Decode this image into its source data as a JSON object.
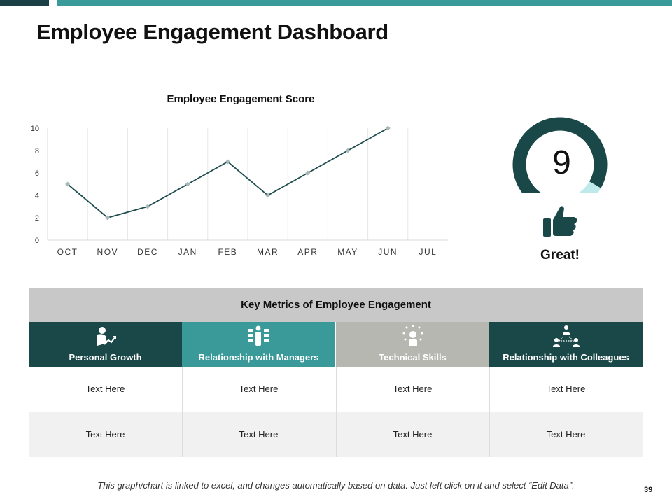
{
  "slide": {
    "title": "Employee Engagement Dashboard",
    "footnote": "This graph/chart is linked to excel, and changes automatically based on data. Just left click on it and select “Edit Data”.",
    "page_number": "39"
  },
  "colors": {
    "dark_teal": "#1a4848",
    "teal": "#3a9a9a",
    "gray": "#b7b7b2",
    "light_cyan": "#bfeaec",
    "line": "#1f4d4f",
    "marker": "#a8b8b6"
  },
  "chart_data": {
    "type": "line",
    "title": "Employee Engagement Score",
    "categories": [
      "OCT",
      "NOV",
      "DEC",
      "JAN",
      "FEB",
      "MAR",
      "APR",
      "MAY",
      "JUN",
      "JUL"
    ],
    "series": [
      {
        "name": "Employee Engagement Score",
        "values": [
          5,
          2,
          3,
          5,
          7,
          4,
          6,
          8,
          10,
          null
        ]
      }
    ],
    "ylim": [
      0,
      10
    ],
    "yticks": [
      0,
      2,
      4,
      6,
      8,
      10
    ],
    "xlabel": "",
    "ylabel": "",
    "grid": "vertical"
  },
  "gauge": {
    "value": 9,
    "display_value": "9",
    "max": 10,
    "rating": "Great!",
    "icon": "thumbs-up-icon"
  },
  "metrics": {
    "title": "Key Metrics of Employee Engagement",
    "columns": [
      {
        "label": "Personal Growth",
        "icon": "personal-growth-icon",
        "color": "#1a4848"
      },
      {
        "label": "Relationship with Managers",
        "icon": "managers-icon",
        "color": "#3a9a9a"
      },
      {
        "label": "Technical Skills",
        "icon": "technical-skills-icon",
        "color": "#b7b7b2"
      },
      {
        "label": "Relationship with Colleagues",
        "icon": "colleagues-icon",
        "color": "#1a4848"
      }
    ],
    "rows": [
      [
        "Text Here",
        "Text Here",
        "Text Here",
        "Text Here"
      ],
      [
        "Text Here",
        "Text Here",
        "Text Here",
        "Text Here"
      ]
    ]
  }
}
